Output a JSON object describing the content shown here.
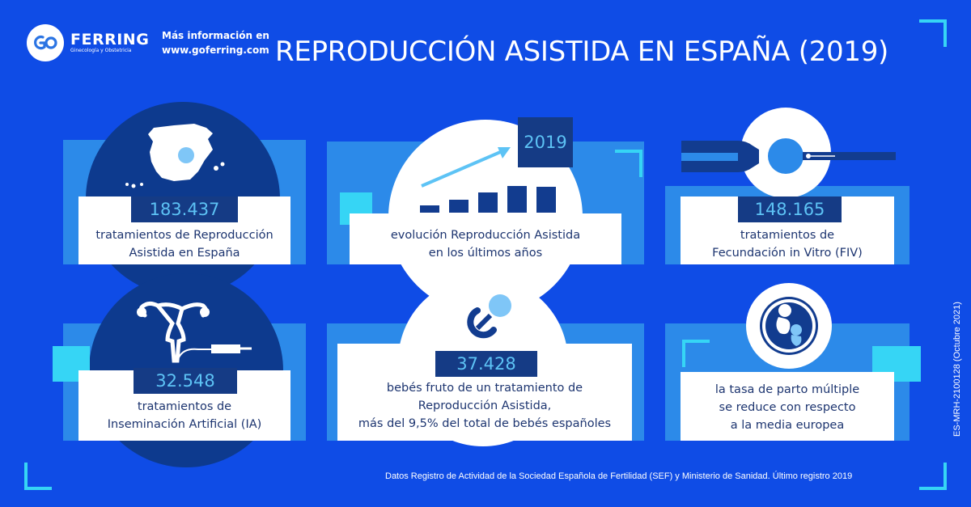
{
  "header": {
    "logo_brand": "FERRING",
    "logo_sub": "Ginecología y Obstetricia",
    "more_info_line1": "Más información en",
    "more_info_line2": "www.goferring.com",
    "title": "REPRODUCCIÓN ASISTIDA EN ESPAÑA (2019)"
  },
  "cards": [
    {
      "value": "183.437",
      "text_line1": "tratamientos de Reproducción",
      "text_line2": "Asistida en España",
      "icon": "spain-map-icon"
    },
    {
      "value": "2019",
      "text_line1": "evolución Reproducción Asistida",
      "text_line2": "en los últimos años",
      "icon": "growth-chart-icon"
    },
    {
      "value": "148.165",
      "text_line1": "tratamientos de",
      "text_line2": "Fecundación in Vitro (FIV)",
      "icon": "ivf-pipette-icon"
    },
    {
      "value": "32.548",
      "text_line1": "tratamientos de",
      "text_line2": "Inseminación Artificial (IA)",
      "icon": "uterus-syringe-icon"
    },
    {
      "value": "37.428",
      "text_line1": "bebés fruto de un tratamiento de",
      "text_line2": "Reproducción Asistida,",
      "text_line3": "más del 9,5% del total de bebés españoles",
      "icon": "pacifier-icon"
    },
    {
      "text_line1": "la tasa de parto múltiple",
      "text_line2": "se reduce con respecto",
      "text_line3": "a la media europea",
      "icon": "twins-icon"
    }
  ],
  "footer": {
    "source": "Datos Registro de Actividad de la Sociedad Española de Fertilidad (SEF) y Ministerio de Sanidad. Último registro 2019",
    "code": "ES-MRH-2100128 (Octubre 2021)"
  },
  "colors": {
    "background": "#0f4ce6",
    "panel": "#2c8ae9",
    "dark_navy": "#0d3a8e",
    "accent_cyan": "#36d5f5",
    "text": "#1d3570"
  }
}
